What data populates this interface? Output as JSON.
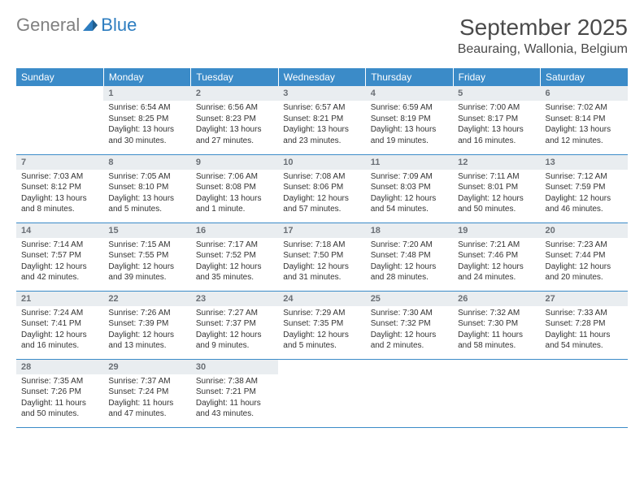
{
  "logo": {
    "gray": "General",
    "blue": "Blue"
  },
  "title": "September 2025",
  "location": "Beauraing, Wallonia, Belgium",
  "colors": {
    "header_bg": "#3b8bc8",
    "header_text": "#ffffff",
    "daynum_bg": "#e9edf0",
    "daynum_text": "#6a6f75",
    "row_border": "#3b8bc8",
    "body_text": "#333333",
    "logo_gray": "#808080",
    "logo_blue": "#2d7dc0",
    "title_color": "#4a4a4a"
  },
  "columns": [
    "Sunday",
    "Monday",
    "Tuesday",
    "Wednesday",
    "Thursday",
    "Friday",
    "Saturday"
  ],
  "weeks": [
    [
      {
        "day": "",
        "sunrise": "",
        "sunset": "",
        "daylight": ""
      },
      {
        "day": "1",
        "sunrise": "Sunrise: 6:54 AM",
        "sunset": "Sunset: 8:25 PM",
        "daylight": "Daylight: 13 hours and 30 minutes."
      },
      {
        "day": "2",
        "sunrise": "Sunrise: 6:56 AM",
        "sunset": "Sunset: 8:23 PM",
        "daylight": "Daylight: 13 hours and 27 minutes."
      },
      {
        "day": "3",
        "sunrise": "Sunrise: 6:57 AM",
        "sunset": "Sunset: 8:21 PM",
        "daylight": "Daylight: 13 hours and 23 minutes."
      },
      {
        "day": "4",
        "sunrise": "Sunrise: 6:59 AM",
        "sunset": "Sunset: 8:19 PM",
        "daylight": "Daylight: 13 hours and 19 minutes."
      },
      {
        "day": "5",
        "sunrise": "Sunrise: 7:00 AM",
        "sunset": "Sunset: 8:17 PM",
        "daylight": "Daylight: 13 hours and 16 minutes."
      },
      {
        "day": "6",
        "sunrise": "Sunrise: 7:02 AM",
        "sunset": "Sunset: 8:14 PM",
        "daylight": "Daylight: 13 hours and 12 minutes."
      }
    ],
    [
      {
        "day": "7",
        "sunrise": "Sunrise: 7:03 AM",
        "sunset": "Sunset: 8:12 PM",
        "daylight": "Daylight: 13 hours and 8 minutes."
      },
      {
        "day": "8",
        "sunrise": "Sunrise: 7:05 AM",
        "sunset": "Sunset: 8:10 PM",
        "daylight": "Daylight: 13 hours and 5 minutes."
      },
      {
        "day": "9",
        "sunrise": "Sunrise: 7:06 AM",
        "sunset": "Sunset: 8:08 PM",
        "daylight": "Daylight: 13 hours and 1 minute."
      },
      {
        "day": "10",
        "sunrise": "Sunrise: 7:08 AM",
        "sunset": "Sunset: 8:06 PM",
        "daylight": "Daylight: 12 hours and 57 minutes."
      },
      {
        "day": "11",
        "sunrise": "Sunrise: 7:09 AM",
        "sunset": "Sunset: 8:03 PM",
        "daylight": "Daylight: 12 hours and 54 minutes."
      },
      {
        "day": "12",
        "sunrise": "Sunrise: 7:11 AM",
        "sunset": "Sunset: 8:01 PM",
        "daylight": "Daylight: 12 hours and 50 minutes."
      },
      {
        "day": "13",
        "sunrise": "Sunrise: 7:12 AM",
        "sunset": "Sunset: 7:59 PM",
        "daylight": "Daylight: 12 hours and 46 minutes."
      }
    ],
    [
      {
        "day": "14",
        "sunrise": "Sunrise: 7:14 AM",
        "sunset": "Sunset: 7:57 PM",
        "daylight": "Daylight: 12 hours and 42 minutes."
      },
      {
        "day": "15",
        "sunrise": "Sunrise: 7:15 AM",
        "sunset": "Sunset: 7:55 PM",
        "daylight": "Daylight: 12 hours and 39 minutes."
      },
      {
        "day": "16",
        "sunrise": "Sunrise: 7:17 AM",
        "sunset": "Sunset: 7:52 PM",
        "daylight": "Daylight: 12 hours and 35 minutes."
      },
      {
        "day": "17",
        "sunrise": "Sunrise: 7:18 AM",
        "sunset": "Sunset: 7:50 PM",
        "daylight": "Daylight: 12 hours and 31 minutes."
      },
      {
        "day": "18",
        "sunrise": "Sunrise: 7:20 AM",
        "sunset": "Sunset: 7:48 PM",
        "daylight": "Daylight: 12 hours and 28 minutes."
      },
      {
        "day": "19",
        "sunrise": "Sunrise: 7:21 AM",
        "sunset": "Sunset: 7:46 PM",
        "daylight": "Daylight: 12 hours and 24 minutes."
      },
      {
        "day": "20",
        "sunrise": "Sunrise: 7:23 AM",
        "sunset": "Sunset: 7:44 PM",
        "daylight": "Daylight: 12 hours and 20 minutes."
      }
    ],
    [
      {
        "day": "21",
        "sunrise": "Sunrise: 7:24 AM",
        "sunset": "Sunset: 7:41 PM",
        "daylight": "Daylight: 12 hours and 16 minutes."
      },
      {
        "day": "22",
        "sunrise": "Sunrise: 7:26 AM",
        "sunset": "Sunset: 7:39 PM",
        "daylight": "Daylight: 12 hours and 13 minutes."
      },
      {
        "day": "23",
        "sunrise": "Sunrise: 7:27 AM",
        "sunset": "Sunset: 7:37 PM",
        "daylight": "Daylight: 12 hours and 9 minutes."
      },
      {
        "day": "24",
        "sunrise": "Sunrise: 7:29 AM",
        "sunset": "Sunset: 7:35 PM",
        "daylight": "Daylight: 12 hours and 5 minutes."
      },
      {
        "day": "25",
        "sunrise": "Sunrise: 7:30 AM",
        "sunset": "Sunset: 7:32 PM",
        "daylight": "Daylight: 12 hours and 2 minutes."
      },
      {
        "day": "26",
        "sunrise": "Sunrise: 7:32 AM",
        "sunset": "Sunset: 7:30 PM",
        "daylight": "Daylight: 11 hours and 58 minutes."
      },
      {
        "day": "27",
        "sunrise": "Sunrise: 7:33 AM",
        "sunset": "Sunset: 7:28 PM",
        "daylight": "Daylight: 11 hours and 54 minutes."
      }
    ],
    [
      {
        "day": "28",
        "sunrise": "Sunrise: 7:35 AM",
        "sunset": "Sunset: 7:26 PM",
        "daylight": "Daylight: 11 hours and 50 minutes."
      },
      {
        "day": "29",
        "sunrise": "Sunrise: 7:37 AM",
        "sunset": "Sunset: 7:24 PM",
        "daylight": "Daylight: 11 hours and 47 minutes."
      },
      {
        "day": "30",
        "sunrise": "Sunrise: 7:38 AM",
        "sunset": "Sunset: 7:21 PM",
        "daylight": "Daylight: 11 hours and 43 minutes."
      },
      {
        "day": "",
        "sunrise": "",
        "sunset": "",
        "daylight": ""
      },
      {
        "day": "",
        "sunrise": "",
        "sunset": "",
        "daylight": ""
      },
      {
        "day": "",
        "sunrise": "",
        "sunset": "",
        "daylight": ""
      },
      {
        "day": "",
        "sunrise": "",
        "sunset": "",
        "daylight": ""
      }
    ]
  ]
}
